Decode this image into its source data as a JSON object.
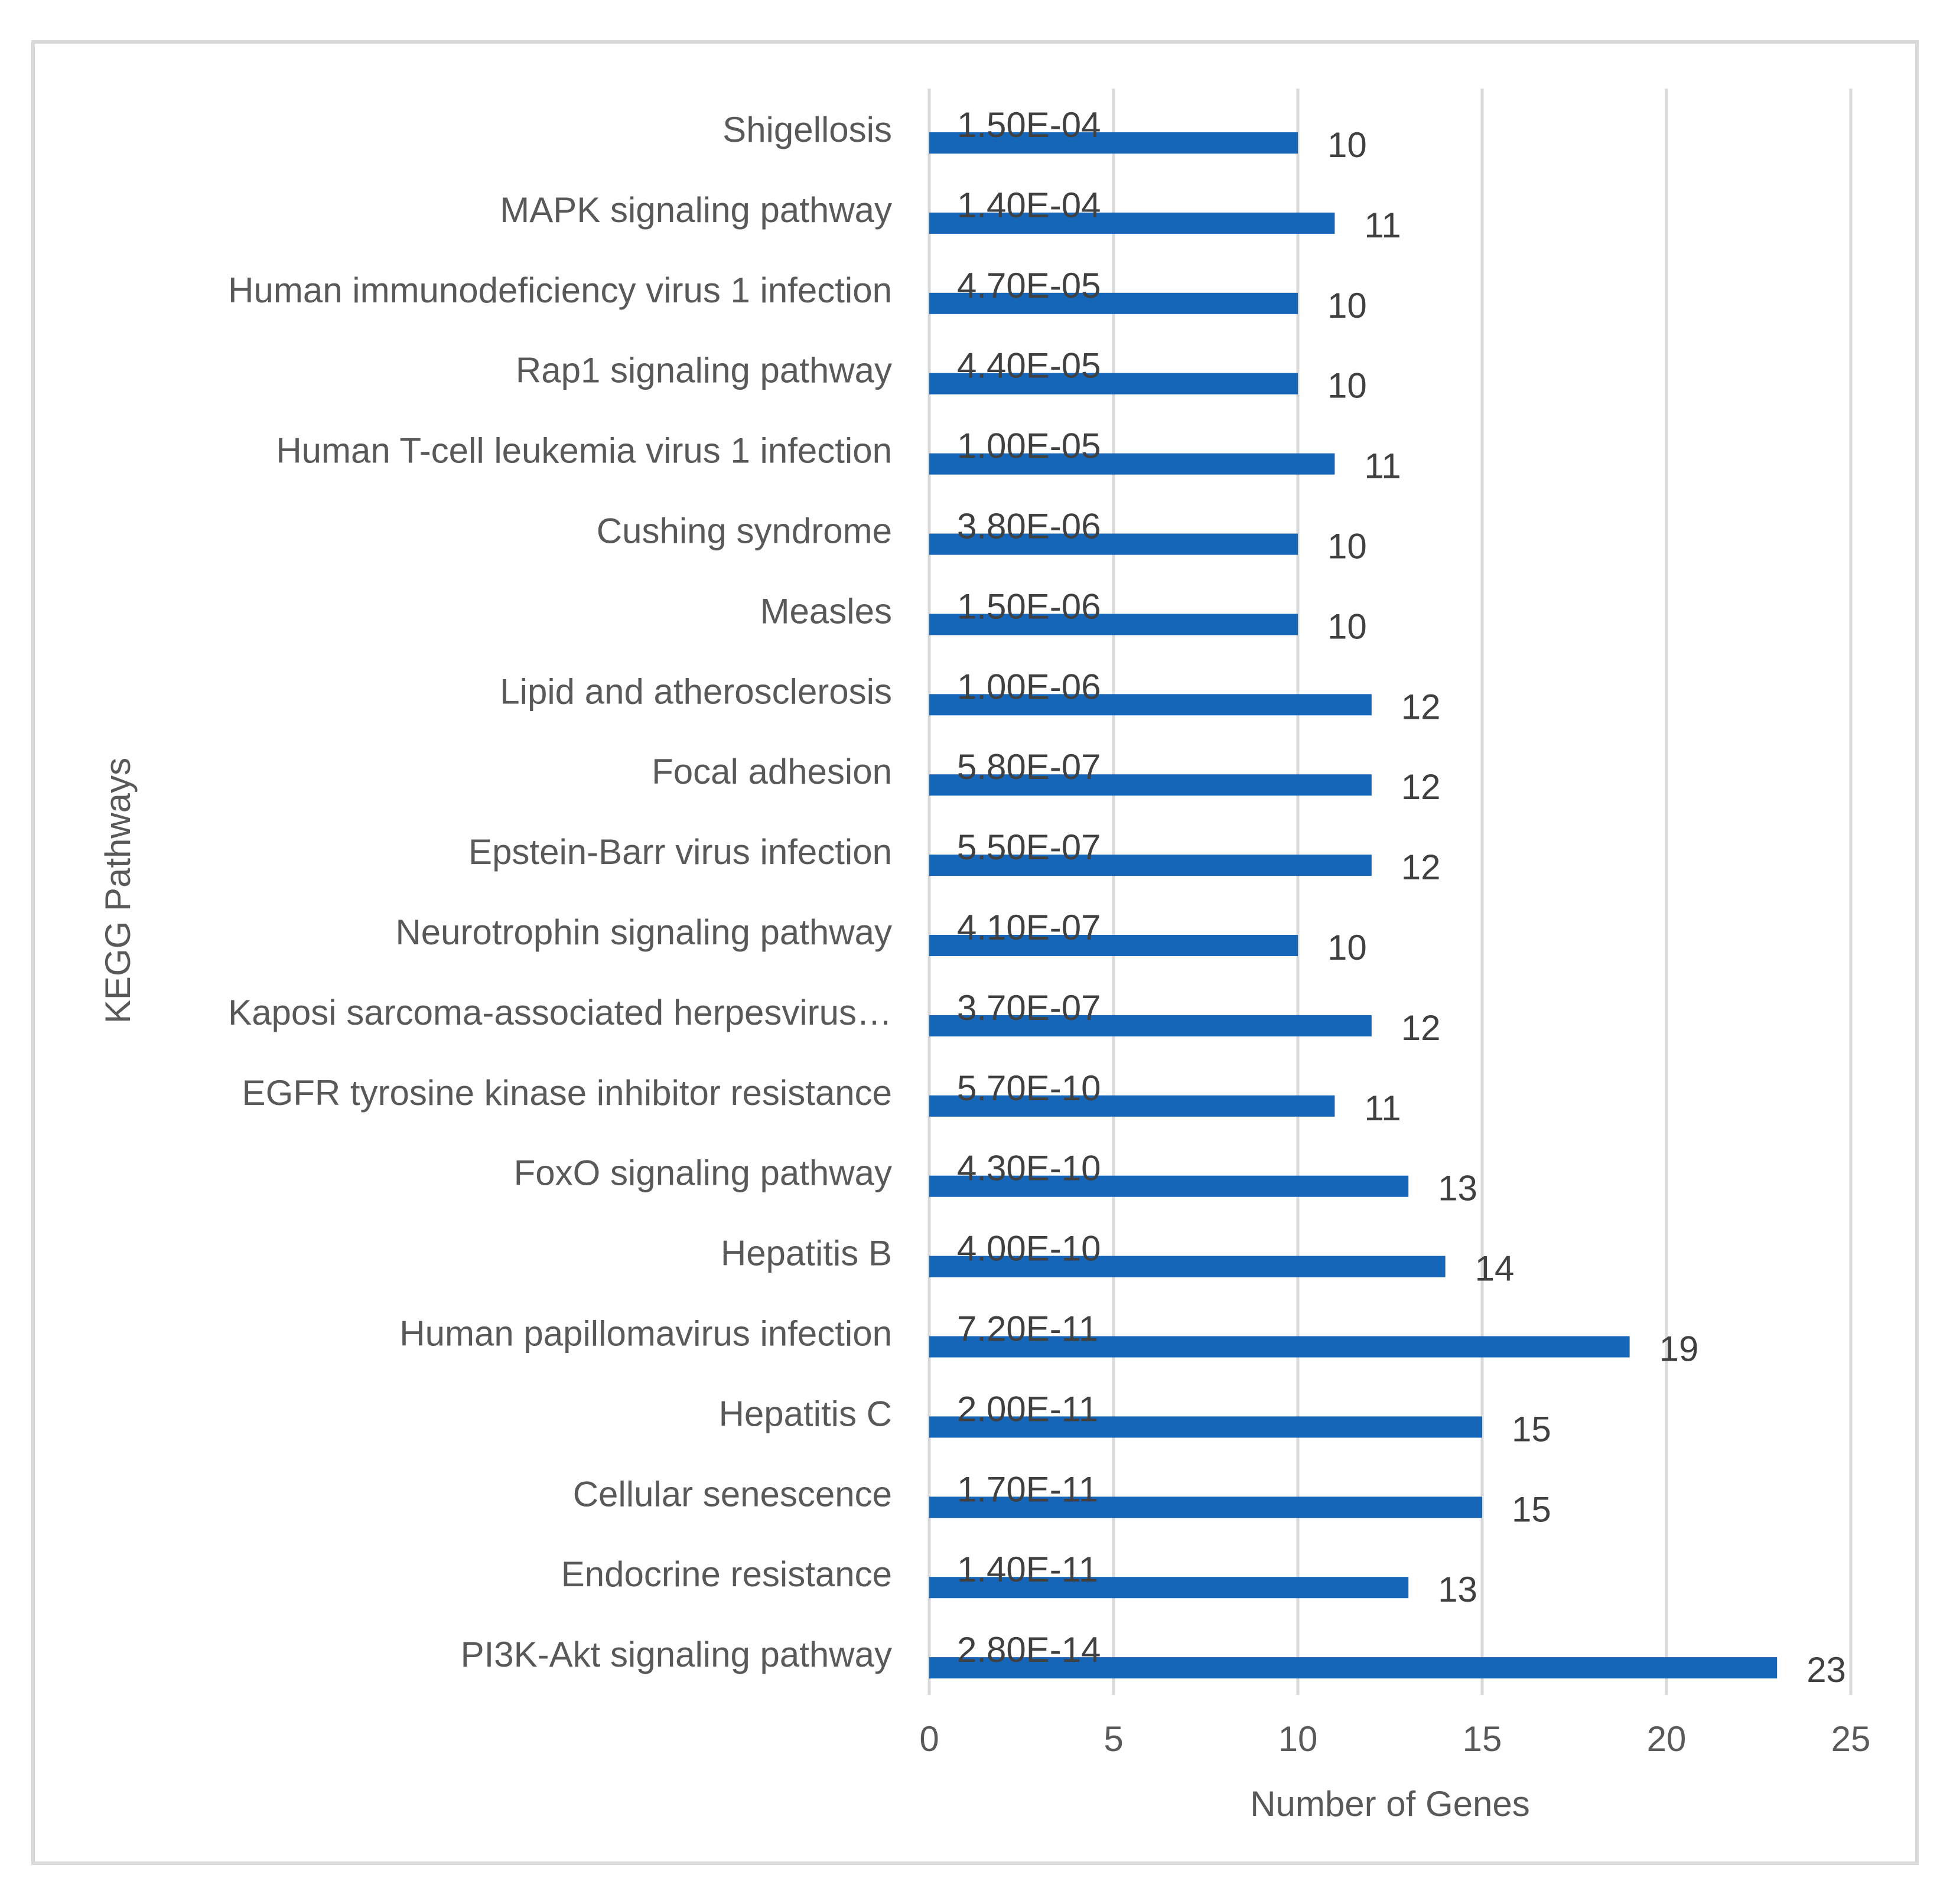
{
  "chart_data": {
    "type": "bar",
    "orientation": "horizontal",
    "title": "",
    "xlabel": "Number of Genes",
    "ylabel": "KEGG Pathways",
    "xlim": [
      0,
      25
    ],
    "xticks": [
      0,
      5,
      10,
      15,
      20,
      25
    ],
    "grid": true,
    "legend": "none",
    "bar_color": "#1565b8",
    "categories": [
      "Shigellosis",
      "MAPK signaling pathway",
      "Human immunodeficiency virus 1 infection",
      "Rap1 signaling pathway",
      "Human T-cell leukemia virus 1 infection",
      "Cushing syndrome",
      "Measles",
      "Lipid and atherosclerosis",
      "Focal adhesion",
      "Epstein-Barr virus infection",
      "Neurotrophin signaling pathway",
      "Kaposi sarcoma-associated herpesvirus…",
      "EGFR tyrosine kinase inhibitor resistance",
      "FoxO signaling pathway",
      "Hepatitis B",
      "Human papillomavirus infection",
      "Hepatitis C",
      "Cellular senescence",
      "Endocrine resistance",
      "PI3K-Akt signaling pathway"
    ],
    "values": [
      10,
      11,
      10,
      10,
      11,
      10,
      10,
      12,
      12,
      12,
      10,
      12,
      11,
      13,
      14,
      19,
      15,
      15,
      13,
      23
    ],
    "pvalues": [
      "1.50E-04",
      "1.40E-04",
      "4.70E-05",
      "4.40E-05",
      "1.00E-05",
      "3.80E-06",
      "1.50E-06",
      "1.00E-06",
      "5.80E-07",
      "5.50E-07",
      "4.10E-07",
      "3.70E-07",
      "5.70E-10",
      "4.30E-10",
      "4.00E-10",
      "7.20E-11",
      "2.00E-11",
      "1.70E-11",
      "1.40E-11",
      "2.80E-14"
    ]
  }
}
